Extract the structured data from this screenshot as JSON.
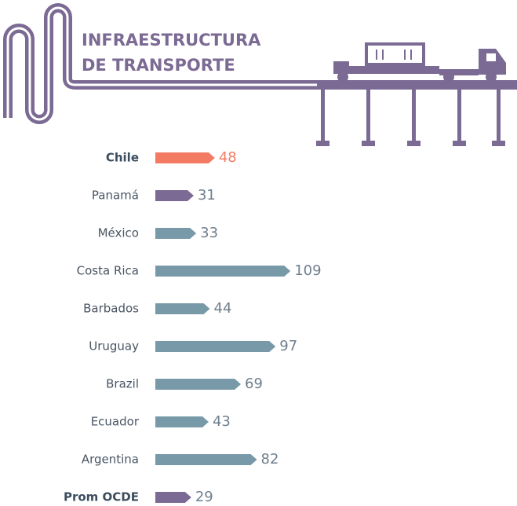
{
  "chart_data": {
    "type": "bar",
    "title": [
      "INFRAESTRUCTURA",
      "DE TRANSPORTE"
    ],
    "categories": [
      "Chile",
      "Panamá",
      "México",
      "Costa Rica",
      "Barbados",
      "Uruguay",
      "Brazil",
      "Ecuador",
      "Argentina",
      "Prom OCDE"
    ],
    "values": [
      48,
      31,
      33,
      109,
      44,
      97,
      69,
      43,
      82,
      29
    ],
    "colors": [
      "#f37b64",
      "#7b6a94",
      "#7899a8",
      "#7899a8",
      "#7899a8",
      "#7899a8",
      "#7899a8",
      "#7899a8",
      "#7899a8",
      "#7b6a94"
    ]
  }
}
